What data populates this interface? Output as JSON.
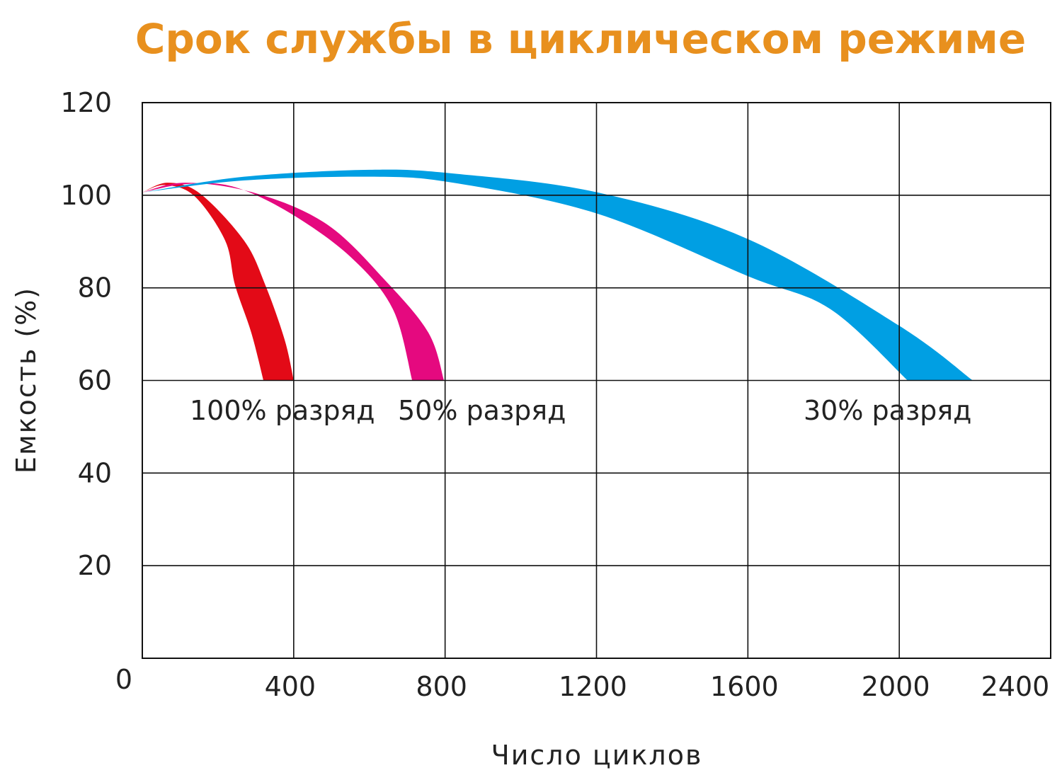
{
  "chart_data": {
    "type": "area",
    "title": "Срок службы в циклическом режиме",
    "title_color": "#E8901E",
    "xlabel": "Число циклов",
    "ylabel": "Емкость (%)",
    "xlim": [
      0,
      2400
    ],
    "ylim": [
      0,
      120
    ],
    "xticks": [
      400,
      800,
      1200,
      1600,
      2000,
      2400
    ],
    "yticks": [
      20,
      40,
      60,
      80,
      100,
      120
    ],
    "origin_label": "0",
    "grid": true,
    "series": [
      {
        "name": "100% разряд",
        "color": "#E30A17",
        "upper": [
          [
            0,
            100.6
          ],
          [
            67,
            102.7
          ],
          [
            152,
            100.4
          ],
          [
            269,
            90.2
          ],
          [
            325,
            80.6
          ],
          [
            376,
            68.8
          ],
          [
            400,
            60
          ]
        ],
        "lower": [
          [
            0,
            100.6
          ],
          [
            60,
            102.2
          ],
          [
            138,
            99.8
          ],
          [
            219,
            90.2
          ],
          [
            245,
            80.6
          ],
          [
            288,
            70.3
          ],
          [
            320,
            60
          ]
        ]
      },
      {
        "name": "50% разряд",
        "color": "#E5097F",
        "upper": [
          [
            0,
            100.6
          ],
          [
            114,
            102.7
          ],
          [
            301,
            100.4
          ],
          [
            488,
            93.7
          ],
          [
            643,
            81.5
          ],
          [
            756,
            70.3
          ],
          [
            797,
            60
          ]
        ],
        "lower": [
          [
            0,
            100.6
          ],
          [
            114,
            102.4
          ],
          [
            238,
            101.9
          ],
          [
            387,
            96.3
          ],
          [
            550,
            86.7
          ],
          [
            662,
            75.4
          ],
          [
            713,
            60
          ]
        ]
      },
      {
        "name": "30% разряд",
        "color": "#009FE3",
        "upper": [
          [
            0,
            100.6
          ],
          [
            269,
            104
          ],
          [
            600,
            105.5
          ],
          [
            821,
            104.7
          ],
          [
            1203,
            100.6
          ],
          [
            1601,
            90.5
          ],
          [
            2000,
            71.8
          ],
          [
            2194,
            60
          ]
        ],
        "lower": [
          [
            0,
            100.6
          ],
          [
            269,
            103.2
          ],
          [
            600,
            104
          ],
          [
            821,
            102.7
          ],
          [
            1203,
            96
          ],
          [
            1601,
            82.5
          ],
          [
            1818,
            75.4
          ],
          [
            2022,
            60
          ]
        ]
      }
    ]
  }
}
